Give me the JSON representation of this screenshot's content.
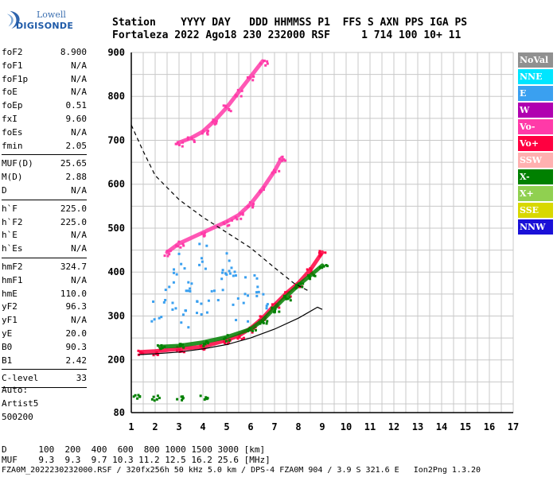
{
  "logo": {
    "line1": "Lowell",
    "line2": "DIGISONDE"
  },
  "header": {
    "line1": "Station    YYYY DAY   DDD HHMMSS P1  FFS S AXN PPS IGA PS",
    "line2": "Fortaleza 2022 Ago18 230 232000 RSF     1 714 100 10+ 11"
  },
  "params": {
    "group1": [
      {
        "label": "foF2",
        "value": "8.900"
      },
      {
        "label": "foF1",
        "value": "N/A"
      },
      {
        "label": "foF1p",
        "value": "N/A"
      },
      {
        "label": "foE",
        "value": "N/A"
      },
      {
        "label": "foEp",
        "value": "0.51"
      },
      {
        "label": "fxI",
        "value": "9.60"
      },
      {
        "label": "foEs",
        "value": "N/A"
      },
      {
        "label": "fmin",
        "value": "2.05"
      }
    ],
    "group2": [
      {
        "label": "MUF(D)",
        "value": "25.65"
      },
      {
        "label": "M(D)",
        "value": "2.88"
      },
      {
        "label": "D",
        "value": "N/A"
      }
    ],
    "group3": [
      {
        "label": "h`F",
        "value": "225.0"
      },
      {
        "label": "h`F2",
        "value": "225.0"
      },
      {
        "label": "h`E",
        "value": "N/A"
      },
      {
        "label": "h`Es",
        "value": "N/A"
      }
    ],
    "group4": [
      {
        "label": "hmF2",
        "value": "324.7"
      },
      {
        "label": "hmF1",
        "value": "N/A"
      },
      {
        "label": "hmE",
        "value": "110.0"
      },
      {
        "label": "yF2",
        "value": "96.3"
      },
      {
        "label": "yF1",
        "value": "N/A"
      },
      {
        "label": "yE",
        "value": "20.0"
      },
      {
        "label": "B0",
        "value": "90.3"
      },
      {
        "label": "B1",
        "value": "2.42"
      }
    ],
    "group5": [
      {
        "label": "C-level",
        "value": "33"
      }
    ],
    "auto": [
      "Auto:",
      "Artist5",
      "500200"
    ]
  },
  "legend": [
    {
      "label": "NoVal",
      "color": "#909090"
    },
    {
      "label": "NNE",
      "color": "#00e5ff"
    },
    {
      "label": "E",
      "color": "#3aa0f0"
    },
    {
      "label": "W",
      "color": "#b000b0"
    },
    {
      "label": "Vo-",
      "color": "#ff3aa8"
    },
    {
      "label": "Vo+",
      "color": "#ff0040"
    },
    {
      "label": "SSW",
      "color": "#ffb0b0"
    },
    {
      "label": "X-",
      "color": "#008000"
    },
    {
      "label": "X+",
      "color": "#90d050"
    },
    {
      "label": "SSE",
      "color": "#d8d800"
    },
    {
      "label": "NNW",
      "color": "#1a10d8"
    }
  ],
  "footer": {
    "line1": "D      100  200  400  600  800 1000 1500 3000 [km]",
    "line2": "MUF    9.3  9.3  9.7 10.3 11.2 12.5 16.2 25.6 [MHz]",
    "line3": "FZA0M_2022230232000.RSF / 320fx256h 50 kHz 5.0 km / DPS-4 FZA0M 904 / 3.9 S 321.6 E   Ion2Png 1.3.20"
  },
  "chart_data": {
    "type": "scatter",
    "title": "",
    "xlabel": "",
    "ylabel": "",
    "xlim": [
      1,
      17
    ],
    "ylim": [
      80,
      900
    ],
    "x_ticks": [
      1,
      2,
      3,
      4,
      5,
      6,
      7,
      8,
      9,
      10,
      11,
      12,
      13,
      14,
      15,
      16,
      17
    ],
    "y_ticks": [
      80,
      200,
      300,
      400,
      500,
      600,
      700,
      800,
      900
    ],
    "grid": true,
    "legend_position": "right",
    "series": [
      {
        "name": "Vo+",
        "role": "F2 O-trace",
        "color": "#ff0040",
        "points": [
          [
            1.4,
            218
          ],
          [
            2,
            220
          ],
          [
            3,
            225
          ],
          [
            4,
            230
          ],
          [
            5,
            245
          ],
          [
            5.5,
            255
          ],
          [
            6,
            272
          ],
          [
            6.5,
            295
          ],
          [
            7,
            325
          ],
          [
            7.5,
            352
          ],
          [
            8,
            375
          ],
          [
            8.5,
            405
          ],
          [
            9,
            445
          ]
        ]
      },
      {
        "name": "X-",
        "role": "F2 X-trace",
        "color": "#008000",
        "points": [
          [
            2.2,
            230
          ],
          [
            3,
            232
          ],
          [
            4,
            240
          ],
          [
            5,
            252
          ],
          [
            6,
            270
          ],
          [
            6.5,
            290
          ],
          [
            7,
            318
          ],
          [
            7.5,
            345
          ],
          [
            8,
            370
          ],
          [
            8.5,
            392
          ],
          [
            9,
            415
          ]
        ]
      },
      {
        "name": "Vo-",
        "role": "second-hop trace",
        "color": "#ff3aa8",
        "points": [
          [
            2.5,
            445
          ],
          [
            3,
            465
          ],
          [
            4,
            490
          ],
          [
            5,
            515
          ],
          [
            5.5,
            530
          ],
          [
            6,
            555
          ],
          [
            6.5,
            590
          ],
          [
            7,
            630
          ],
          [
            7.3,
            660
          ]
        ]
      },
      {
        "name": "Vo-",
        "role": "third-hop trace",
        "color": "#ff3aa8",
        "points": [
          [
            3,
            695
          ],
          [
            3.5,
            705
          ],
          [
            4,
            720
          ],
          [
            4.5,
            745
          ],
          [
            5,
            775
          ],
          [
            5.5,
            810
          ],
          [
            6,
            845
          ],
          [
            6.5,
            880
          ]
        ]
      },
      {
        "name": "E",
        "role": "spread echoes",
        "color": "#3aa0f0",
        "points": [
          [
            2,
            310
          ],
          [
            2.5,
            350
          ],
          [
            3,
            300
          ],
          [
            3.5,
            380
          ],
          [
            4,
            330
          ],
          [
            4.5,
            360
          ],
          [
            5,
            390
          ],
          [
            5.5,
            320
          ],
          [
            6,
            370
          ],
          [
            6.5,
            350
          ],
          [
            3,
            420
          ],
          [
            4,
            440
          ],
          [
            5,
            420
          ]
        ]
      },
      {
        "name": "X-",
        "role": "low-height echoes",
        "color": "#008000",
        "points": [
          [
            1.2,
            116
          ],
          [
            2,
            115
          ],
          [
            3,
            116
          ],
          [
            4,
            117
          ]
        ]
      }
    ],
    "curves": [
      {
        "name": "profile",
        "style": "solid",
        "points": [
          [
            1.3,
            212
          ],
          [
            2,
            214
          ],
          [
            3,
            218
          ],
          [
            4,
            225
          ],
          [
            5,
            235
          ],
          [
            6,
            250
          ],
          [
            7,
            270
          ],
          [
            8,
            295
          ],
          [
            8.8,
            320
          ],
          [
            9,
            315
          ]
        ]
      },
      {
        "name": "MUF(D)",
        "style": "dashed",
        "points": [
          [
            1,
            735
          ],
          [
            1.5,
            675
          ],
          [
            2,
            620
          ],
          [
            3,
            565
          ],
          [
            4,
            525
          ],
          [
            5,
            490
          ],
          [
            6,
            455
          ],
          [
            7,
            410
          ],
          [
            7.8,
            375
          ],
          [
            8.5,
            355
          ]
        ]
      }
    ]
  }
}
